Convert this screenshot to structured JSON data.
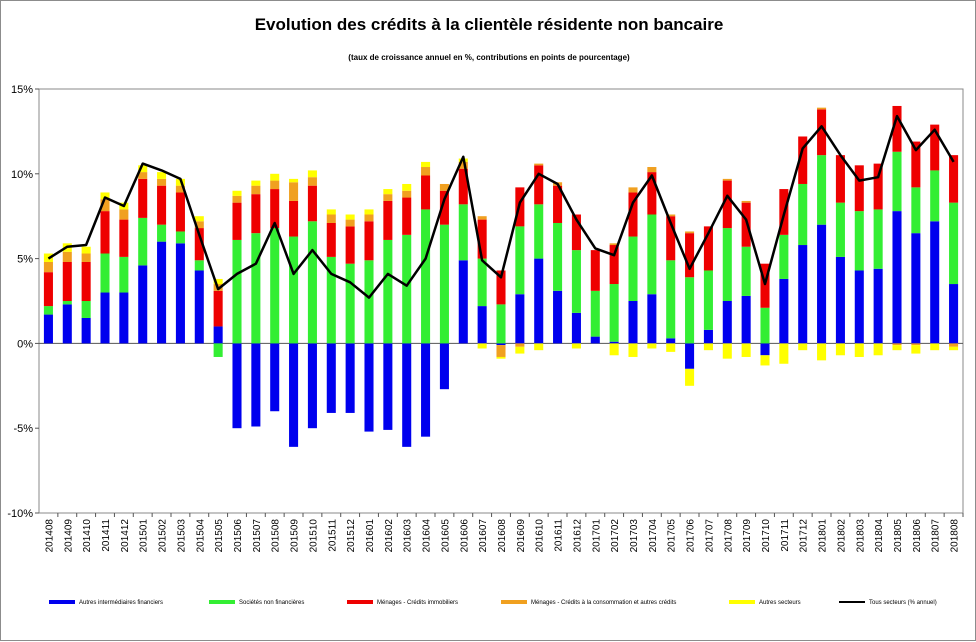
{
  "title": "Evolution  des crédits à la clientèle résidente non bancaire",
  "subtitle": "(taux de croissance annuel en %, contributions en points de pourcentage)",
  "chart_data": {
    "type": "bar",
    "stacked": true,
    "ylim": [
      -10,
      15
    ],
    "yticks": [
      -10,
      -5,
      0,
      5,
      10,
      15
    ],
    "ytick_labels": [
      "-10%",
      "-5%",
      "0%",
      "5%",
      "10%",
      "15%"
    ],
    "grid": false,
    "legend_position": "bottom",
    "categories": [
      "201408",
      "201409",
      "201410",
      "201411",
      "201412",
      "201501",
      "201502",
      "201503",
      "201504",
      "201505",
      "201506",
      "201507",
      "201508",
      "201509",
      "201510",
      "201511",
      "201512",
      "201601",
      "201602",
      "201603",
      "201604",
      "201605",
      "201606",
      "201607",
      "201608",
      "201609",
      "201610",
      "201611",
      "201612",
      "201701",
      "201702",
      "201703",
      "201704",
      "201705",
      "201706",
      "201707",
      "201708",
      "201709",
      "201710",
      "201711",
      "201712",
      "201801",
      "201802",
      "201803",
      "201804",
      "201805",
      "201806",
      "201807",
      "201808"
    ],
    "series": [
      {
        "name": "Autres intermédiaires financiers",
        "color": "#0000ee",
        "values": [
          1.7,
          2.3,
          1.5,
          3.0,
          3.0,
          4.6,
          6.0,
          5.9,
          4.3,
          1.0,
          -5.0,
          -4.9,
          -4.0,
          -6.1,
          -5.0,
          -4.1,
          -4.1,
          -5.2,
          -5.1,
          -6.1,
          -5.5,
          -2.7,
          4.9,
          2.2,
          -0.1,
          2.9,
          5.0,
          3.1,
          1.8,
          0.4,
          0.1,
          2.5,
          2.9,
          0.3,
          -1.5,
          0.8,
          2.5,
          2.8,
          -0.7,
          3.8,
          5.8,
          7.0,
          5.1,
          4.3,
          4.4,
          7.8,
          6.5,
          7.2,
          3.5
        ]
      },
      {
        "name": "Sociétés non financières",
        "color": "#33ee33",
        "values": [
          0.5,
          0.2,
          1.0,
          2.3,
          2.1,
          2.8,
          1.0,
          0.7,
          0.6,
          -0.8,
          6.1,
          6.5,
          6.8,
          6.3,
          7.2,
          5.1,
          4.7,
          4.9,
          6.1,
          6.4,
          7.9,
          7.0,
          3.3,
          2.8,
          2.3,
          4.0,
          3.2,
          4.0,
          3.7,
          2.7,
          3.4,
          3.8,
          4.7,
          4.6,
          3.9,
          3.5,
          4.3,
          2.9,
          2.1,
          2.6,
          3.6,
          4.1,
          3.2,
          3.5,
          3.5,
          3.5,
          2.7,
          3.0,
          4.8
        ]
      },
      {
        "name": "Ménages - Crédits immobiliers",
        "color": "#ee0000",
        "values": [
          2.0,
          2.3,
          2.3,
          2.5,
          2.2,
          2.3,
          2.3,
          2.3,
          1.9,
          2.1,
          2.2,
          2.3,
          2.3,
          2.1,
          2.1,
          2.0,
          2.2,
          2.3,
          2.3,
          2.2,
          2.0,
          2.0,
          2.1,
          2.3,
          2.0,
          2.3,
          2.3,
          2.2,
          2.1,
          2.4,
          2.3,
          2.6,
          2.5,
          2.6,
          2.6,
          2.6,
          2.8,
          2.6,
          2.6,
          2.7,
          2.8,
          2.7,
          2.8,
          2.7,
          2.7,
          2.7,
          2.7,
          2.7,
          2.8
        ]
      },
      {
        "name": "Ménages - Crédits à la consommation et autres crédits",
        "color": "#f0a020",
        "values": [
          0.6,
          0.6,
          0.5,
          0.7,
          0.6,
          0.4,
          0.4,
          0.4,
          0.4,
          0.4,
          0.4,
          0.5,
          0.5,
          1.1,
          0.5,
          0.5,
          0.4,
          0.4,
          0.4,
          0.4,
          0.5,
          0.4,
          0.4,
          0.2,
          -0.7,
          -0.2,
          0.1,
          0.2,
          0.0,
          0.0,
          0.1,
          0.3,
          0.3,
          0.1,
          0.1,
          0.0,
          0.1,
          0.1,
          0.0,
          0.0,
          0.0,
          0.1,
          0.0,
          0.0,
          0.0,
          -0.1,
          -0.1,
          0.0,
          -0.2
        ]
      },
      {
        "name": "Autres secteurs",
        "color": "#ffff00",
        "values": [
          0.5,
          0.5,
          0.4,
          0.4,
          0.4,
          0.4,
          0.4,
          0.4,
          0.3,
          0.3,
          0.3,
          0.3,
          0.4,
          0.2,
          0.4,
          0.3,
          0.3,
          0.3,
          0.3,
          0.4,
          0.3,
          0.0,
          0.2,
          -0.3,
          -0.1,
          -0.4,
          -0.4,
          0.0,
          -0.3,
          0.0,
          -0.7,
          -0.8,
          -0.3,
          -0.5,
          -1.0,
          -0.4,
          -0.9,
          -0.8,
          -0.6,
          -1.2,
          -0.4,
          -1.0,
          -0.7,
          -0.8,
          -0.7,
          -0.3,
          -0.5,
          -0.4,
          -0.2
        ]
      },
      {
        "name": "Tous secteurs (% annuel)",
        "color": "#000000",
        "type": "line",
        "values": [
          5.0,
          5.7,
          5.8,
          8.6,
          8.1,
          10.6,
          10.2,
          9.7,
          6.4,
          3.2,
          4.1,
          4.7,
          7.1,
          4.1,
          5.5,
          4.1,
          3.6,
          2.7,
          4.1,
          3.4,
          5.0,
          8.5,
          11.0,
          4.9,
          3.9,
          8.3,
          10.0,
          9.4,
          7.3,
          5.6,
          5.2,
          8.3,
          9.9,
          7.1,
          4.4,
          6.5,
          8.7,
          7.3,
          3.5,
          7.6,
          11.5,
          12.8,
          11.1,
          9.6,
          9.8,
          13.4,
          11.4,
          12.6,
          10.7
        ]
      }
    ]
  }
}
